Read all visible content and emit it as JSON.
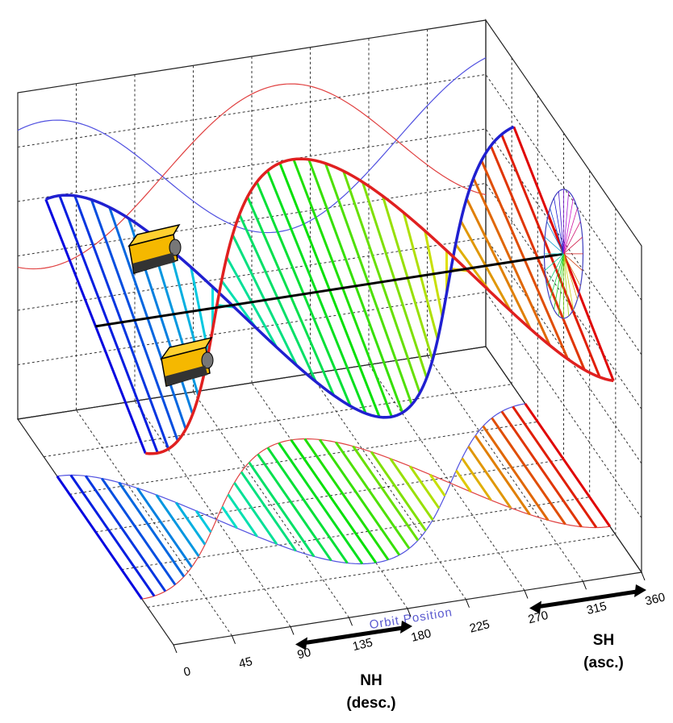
{
  "axis": {
    "label": "Orbit Position",
    "ticks": [
      0,
      45,
      90,
      135,
      180,
      225,
      270,
      315,
      360
    ]
  },
  "annotations": [
    {
      "lines": [
        "NH",
        "(desc.)"
      ]
    },
    {
      "lines": [
        "SH",
        "(asc.)"
      ]
    }
  ]
}
